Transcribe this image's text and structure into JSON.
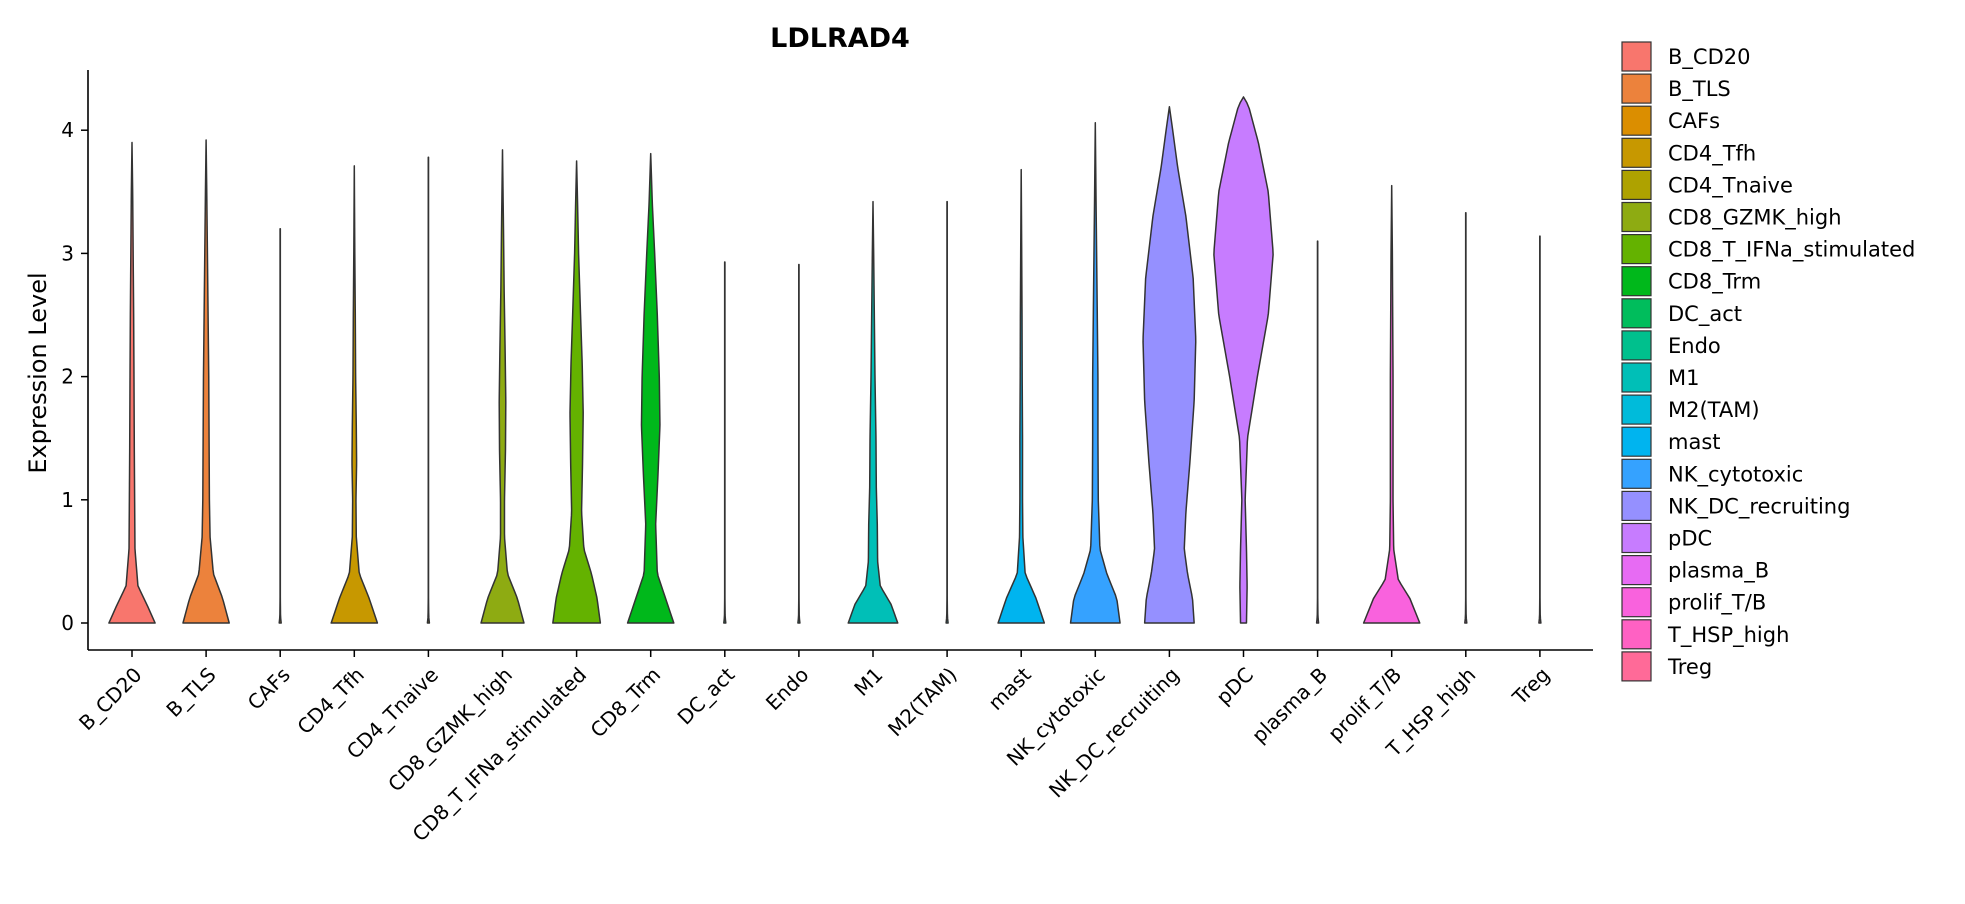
{
  "chart_data": {
    "type": "violin",
    "title": "LDLRAD4",
    "xlabel": "",
    "ylabel": "Expression Level",
    "ylim": [
      -0.2,
      4.5
    ],
    "yticks": [
      0,
      1,
      2,
      3,
      4
    ],
    "legend_position": "right",
    "categories": [
      "B_CD20",
      "B_TLS",
      "CAFs",
      "CD4_Tfh",
      "CD4_Tnaive",
      "CD8_GZMK_high",
      "CD8_T_IFNa_stimulated",
      "CD8_Trm",
      "DC_act",
      "Endo",
      "M1",
      "M2(TAM)",
      "mast",
      "NK_cytotoxic",
      "NK_DC_recruiting",
      "pDC",
      "plasma_B",
      "prolif_T/B",
      "T_HSP_high",
      "Treg"
    ],
    "colors": [
      "#F8766D",
      "#EC823C",
      "#DB8E00",
      "#C79800",
      "#AEA200",
      "#8EAB12",
      "#64B200",
      "#00B81B",
      "#00BD5C",
      "#00C08D",
      "#00BFB7",
      "#00BBDA",
      "#00B4EF",
      "#35A2FF",
      "#9590FF",
      "#C77CFF",
      "#E76BF3",
      "#F962DD",
      "#FF61C3",
      "#FF6A98"
    ],
    "max_values": [
      3.9,
      3.92,
      3.2,
      3.71,
      3.78,
      3.84,
      3.75,
      3.81,
      2.93,
      2.91,
      3.42,
      3.42,
      3.68,
      4.06,
      4.19,
      4.27,
      3.1,
      3.55,
      3.33,
      3.14
    ],
    "shapes": [
      [
        [
          0,
          0.7
        ],
        [
          0.15,
          0.45
        ],
        [
          0.3,
          0.18
        ],
        [
          0.6,
          0.09
        ],
        [
          1.0,
          0.08
        ],
        [
          1.4,
          0.07
        ],
        [
          2.0,
          0.06
        ],
        [
          2.5,
          0.05
        ],
        [
          3.0,
          0.035
        ],
        [
          3.5,
          0.02
        ],
        [
          3.9,
          0
        ]
      ],
      [
        [
          0,
          0.7
        ],
        [
          0.2,
          0.5
        ],
        [
          0.4,
          0.22
        ],
        [
          0.7,
          0.12
        ],
        [
          1.0,
          0.1
        ],
        [
          1.5,
          0.09
        ],
        [
          2.0,
          0.08
        ],
        [
          2.5,
          0.06
        ],
        [
          3.0,
          0.04
        ],
        [
          3.5,
          0.02
        ],
        [
          3.92,
          0
        ]
      ],
      [
        [
          0,
          0.03
        ],
        [
          0.05,
          0.01
        ],
        [
          0.2,
          0.004
        ],
        [
          3.2,
          0.004
        ]
      ],
      [
        [
          0,
          0.7
        ],
        [
          0.2,
          0.45
        ],
        [
          0.4,
          0.15
        ],
        [
          0.7,
          0.06
        ],
        [
          1.0,
          0.05
        ],
        [
          1.3,
          0.07
        ],
        [
          1.6,
          0.06
        ],
        [
          2.0,
          0.04
        ],
        [
          2.5,
          0.03
        ],
        [
          3.0,
          0.015
        ],
        [
          3.71,
          0
        ]
      ],
      [
        [
          0,
          0.03
        ],
        [
          0.05,
          0.01
        ],
        [
          0.2,
          0.004
        ],
        [
          3.78,
          0.004
        ]
      ],
      [
        [
          0,
          0.65
        ],
        [
          0.2,
          0.45
        ],
        [
          0.4,
          0.15
        ],
        [
          0.7,
          0.06
        ],
        [
          1.0,
          0.06
        ],
        [
          1.4,
          0.09
        ],
        [
          1.8,
          0.1
        ],
        [
          2.2,
          0.08
        ],
        [
          2.7,
          0.05
        ],
        [
          3.2,
          0.03
        ],
        [
          3.84,
          0
        ]
      ],
      [
        [
          0,
          0.72
        ],
        [
          0.2,
          0.62
        ],
        [
          0.4,
          0.45
        ],
        [
          0.6,
          0.22
        ],
        [
          0.9,
          0.15
        ],
        [
          1.3,
          0.18
        ],
        [
          1.7,
          0.2
        ],
        [
          2.1,
          0.17
        ],
        [
          2.5,
          0.12
        ],
        [
          3.0,
          0.06
        ],
        [
          3.4,
          0.03
        ],
        [
          3.75,
          0
        ]
      ],
      [
        [
          0,
          0.7
        ],
        [
          0.2,
          0.45
        ],
        [
          0.4,
          0.2
        ],
        [
          0.8,
          0.15
        ],
        [
          1.2,
          0.22
        ],
        [
          1.6,
          0.28
        ],
        [
          2.0,
          0.26
        ],
        [
          2.5,
          0.2
        ],
        [
          3.0,
          0.12
        ],
        [
          3.4,
          0.05
        ],
        [
          3.81,
          0
        ]
      ],
      [
        [
          0,
          0.03
        ],
        [
          0.05,
          0.01
        ],
        [
          0.2,
          0.004
        ],
        [
          2.93,
          0.004
        ]
      ],
      [
        [
          0,
          0.03
        ],
        [
          0.05,
          0.01
        ],
        [
          0.2,
          0.004
        ],
        [
          2.91,
          0.004
        ]
      ],
      [
        [
          0,
          0.75
        ],
        [
          0.15,
          0.55
        ],
        [
          0.3,
          0.22
        ],
        [
          0.5,
          0.14
        ],
        [
          0.8,
          0.13
        ],
        [
          1.1,
          0.1
        ],
        [
          1.5,
          0.09
        ],
        [
          2.0,
          0.06
        ],
        [
          2.5,
          0.04
        ],
        [
          3.0,
          0.02
        ],
        [
          3.42,
          0
        ]
      ],
      [
        [
          0,
          0.03
        ],
        [
          0.05,
          0.01
        ],
        [
          0.2,
          0.004
        ],
        [
          3.42,
          0.004
        ]
      ],
      [
        [
          0,
          0.7
        ],
        [
          0.2,
          0.45
        ],
        [
          0.4,
          0.12
        ],
        [
          0.7,
          0.05
        ],
        [
          1.0,
          0.04
        ],
        [
          1.5,
          0.04
        ],
        [
          2.0,
          0.03
        ],
        [
          2.5,
          0.025
        ],
        [
          3.0,
          0.015
        ],
        [
          3.68,
          0
        ]
      ],
      [
        [
          0,
          0.75
        ],
        [
          0.2,
          0.65
        ],
        [
          0.4,
          0.35
        ],
        [
          0.6,
          0.14
        ],
        [
          1.0,
          0.09
        ],
        [
          1.5,
          0.08
        ],
        [
          2.0,
          0.08
        ],
        [
          2.5,
          0.06
        ],
        [
          3.0,
          0.04
        ],
        [
          3.5,
          0.02
        ],
        [
          4.06,
          0
        ]
      ],
      [
        [
          0,
          0.75
        ],
        [
          0.2,
          0.7
        ],
        [
          0.4,
          0.55
        ],
        [
          0.6,
          0.45
        ],
        [
          0.9,
          0.5
        ],
        [
          1.3,
          0.62
        ],
        [
          1.8,
          0.75
        ],
        [
          2.3,
          0.8
        ],
        [
          2.8,
          0.72
        ],
        [
          3.3,
          0.5
        ],
        [
          3.7,
          0.25
        ],
        [
          4.0,
          0.1
        ],
        [
          4.19,
          0
        ]
      ],
      [
        [
          0,
          0.09
        ],
        [
          0.3,
          0.11
        ],
        [
          0.6,
          0.09
        ],
        [
          1.0,
          0.05
        ],
        [
          1.5,
          0.12
        ],
        [
          2.0,
          0.42
        ],
        [
          2.5,
          0.75
        ],
        [
          3.0,
          0.9
        ],
        [
          3.5,
          0.75
        ],
        [
          3.9,
          0.45
        ],
        [
          4.2,
          0.15
        ],
        [
          4.27,
          0
        ]
      ],
      [
        [
          0,
          0.03
        ],
        [
          0.05,
          0.01
        ],
        [
          0.2,
          0.004
        ],
        [
          3.1,
          0.004
        ]
      ],
      [
        [
          0,
          0.85
        ],
        [
          0.2,
          0.55
        ],
        [
          0.35,
          0.2
        ],
        [
          0.6,
          0.06
        ],
        [
          1.0,
          0.04
        ],
        [
          1.5,
          0.04
        ],
        [
          2.0,
          0.04
        ],
        [
          2.5,
          0.03
        ],
        [
          3.0,
          0.02
        ],
        [
          3.55,
          0
        ]
      ],
      [
        [
          0,
          0.03
        ],
        [
          0.05,
          0.01
        ],
        [
          0.2,
          0.004
        ],
        [
          3.33,
          0.004
        ]
      ],
      [
        [
          0,
          0.03
        ],
        [
          0.05,
          0.01
        ],
        [
          0.2,
          0.004
        ],
        [
          3.14,
          0.004
        ]
      ]
    ]
  }
}
